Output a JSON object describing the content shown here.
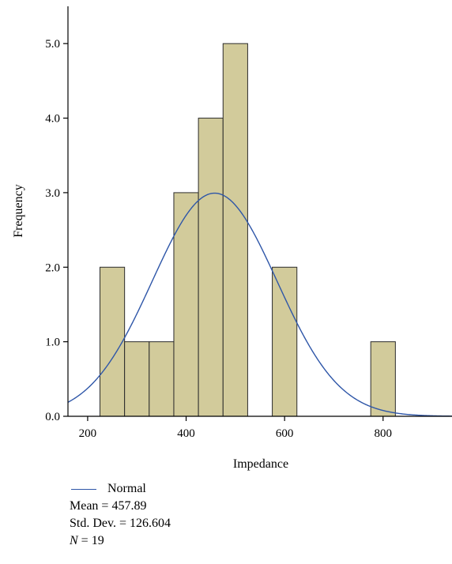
{
  "chart_data": {
    "type": "bar",
    "subtype": "histogram",
    "xlabel": "Impedance",
    "ylabel": "Frequency",
    "xlim": [
      160,
      940
    ],
    "ylim": [
      0,
      5.5
    ],
    "x_ticks": [
      200,
      400,
      600,
      800
    ],
    "x_tick_labels": [
      "200",
      "400",
      "600",
      "800"
    ],
    "y_ticks": [
      0,
      1,
      2,
      3,
      4,
      5
    ],
    "y_tick_labels": [
      "0.0",
      "1.0",
      "2.0",
      "3.0",
      "4.0",
      "5.0"
    ],
    "bin_width": 50,
    "bins": [
      {
        "start": 225,
        "end": 275,
        "count": 2
      },
      {
        "start": 275,
        "end": 325,
        "count": 1
      },
      {
        "start": 325,
        "end": 375,
        "count": 1
      },
      {
        "start": 375,
        "end": 425,
        "count": 3
      },
      {
        "start": 425,
        "end": 475,
        "count": 4
      },
      {
        "start": 475,
        "end": 525,
        "count": 5
      },
      {
        "start": 525,
        "end": 575,
        "count": 0
      },
      {
        "start": 575,
        "end": 625,
        "count": 2
      },
      {
        "start": 625,
        "end": 675,
        "count": 0
      },
      {
        "start": 675,
        "end": 725,
        "count": 0
      },
      {
        "start": 725,
        "end": 775,
        "count": 0
      },
      {
        "start": 775,
        "end": 825,
        "count": 1
      }
    ],
    "normal_curve": {
      "name": "Normal",
      "mean": 457.89,
      "std_dev": 126.604,
      "n": 19
    },
    "colors": {
      "bar_fill": "#d2cb9b",
      "bar_stroke": "#2b2b2b",
      "curve": "#2e56a8"
    },
    "grid": false
  },
  "legend": {
    "curve_label": "Normal",
    "mean_text": "Mean = 457.89",
    "std_text": "Std. Dev. = 126.604",
    "n_symbol": "N",
    "n_value": " = 19"
  }
}
